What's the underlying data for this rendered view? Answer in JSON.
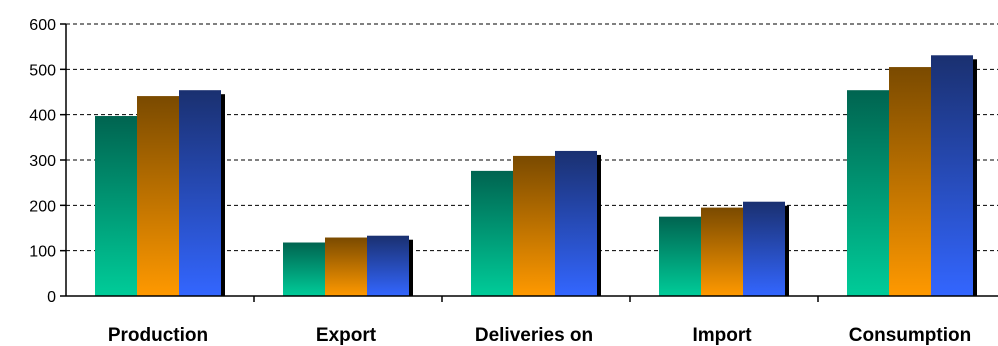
{
  "chart_data": {
    "type": "bar",
    "categories": [
      "Production",
      "Export",
      "Deliveries on",
      "Import",
      "Consumption"
    ],
    "series": [
      {
        "values": [
          397,
          118,
          276,
          175,
          454
        ],
        "color_top": "#006450",
        "color_bottom": "#00cc99"
      },
      {
        "values": [
          441,
          129,
          309,
          195,
          505
        ],
        "color_top": "#7a4a00",
        "color_bottom": "#ff9900"
      },
      {
        "values": [
          454,
          133,
          320,
          208,
          531
        ],
        "color_top": "#1a3070",
        "color_bottom": "#3366ff"
      }
    ],
    "ylim": [
      0,
      600
    ],
    "yticks": [
      0,
      100,
      200,
      300,
      400,
      500,
      600
    ],
    "ytick_labels": [
      "0",
      "100",
      "200",
      "300",
      "400",
      "500",
      "600"
    ],
    "grid": true,
    "grid_style": "dashed",
    "bar_shadow_color": "#000000"
  }
}
